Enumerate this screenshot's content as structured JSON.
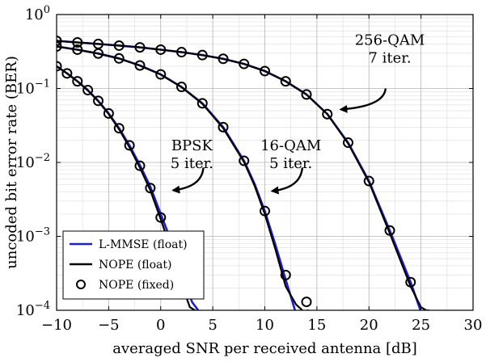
{
  "chart_data": {
    "type": "line",
    "xlabel": "averaged SNR per received antenna [dB]",
    "ylabel": "uncoded bit error rate (BER)",
    "xlim": [
      -10,
      30
    ],
    "ylim": [
      0.0001,
      1
    ],
    "yscale": "log",
    "grid": true,
    "legend_position": "bottom-left",
    "xticks": [
      {
        "value": -10,
        "label": "−10"
      },
      {
        "value": -5,
        "label": "−5"
      },
      {
        "value": 0,
        "label": "0"
      },
      {
        "value": 5,
        "label": "5"
      },
      {
        "value": 10,
        "label": "10"
      },
      {
        "value": 15,
        "label": "15"
      },
      {
        "value": 20,
        "label": "20"
      },
      {
        "value": 25,
        "label": "25"
      },
      {
        "value": 30,
        "label": "30"
      }
    ],
    "yticks": [
      {
        "value": 1,
        "base": "10",
        "exp": "0"
      },
      {
        "value": 0.1,
        "base": "10",
        "exp": "−1"
      },
      {
        "value": 0.01,
        "base": "10",
        "exp": "−2"
      },
      {
        "value": 0.001,
        "base": "10",
        "exp": "−3"
      },
      {
        "value": 0.0001,
        "base": "10",
        "exp": "−4"
      }
    ],
    "colors": {
      "lmmse": "#1f1fd0",
      "nope_float": "#000000",
      "nope_fixed": "#000000"
    },
    "legend": [
      {
        "key": "lmmse",
        "label": "L-MMSE (float)"
      },
      {
        "key": "nope_float",
        "label": "NOPE (float)"
      },
      {
        "key": "nope_fixed",
        "label": "NOPE (fixed)"
      }
    ],
    "groups": [
      {
        "modulation": "BPSK",
        "lmmse": {
          "x": [
            -10,
            -9,
            -8,
            -7,
            -6,
            -5,
            -4,
            -3,
            -2,
            -1,
            0,
            1,
            2,
            3,
            3.6
          ],
          "y": [
            0.2,
            0.16,
            0.125,
            0.095,
            0.068,
            0.046,
            0.029,
            0.017,
            0.0092,
            0.0047,
            0.002,
            0.00087,
            0.00034,
            0.00013,
            0.0001
          ]
        },
        "nope_float": {
          "x": [
            -10,
            -9,
            -8,
            -7,
            -6,
            -5,
            -4,
            -3,
            -2,
            -1,
            0,
            1,
            2,
            2.8,
            3.3
          ],
          "y": [
            0.2,
            0.16,
            0.125,
            0.094,
            0.067,
            0.045,
            0.028,
            0.016,
            0.0085,
            0.0042,
            0.0017,
            0.00066,
            0.00023,
            0.00011,
            0.0001
          ]
        },
        "nope_fixed": {
          "x": [
            -10,
            -9,
            -8,
            -7,
            -6,
            -5,
            -4,
            -3,
            -2,
            -1,
            0,
            1
          ],
          "y": [
            0.2,
            0.16,
            0.125,
            0.095,
            0.068,
            0.046,
            0.029,
            0.017,
            0.009,
            0.0045,
            0.0018,
            0.00072
          ]
        }
      },
      {
        "modulation": "16-QAM",
        "lmmse": {
          "x": [
            -10,
            -8,
            -6,
            -4,
            -2,
            0,
            2,
            4,
            6,
            8,
            9,
            10,
            11,
            12,
            13,
            14.2
          ],
          "y": [
            0.37,
            0.335,
            0.297,
            0.255,
            0.205,
            0.155,
            0.105,
            0.063,
            0.03,
            0.0105,
            0.0052,
            0.0022,
            0.00078,
            0.00026,
            9e-05,
            0.0001
          ]
        },
        "nope_float": {
          "x": [
            -10,
            -8,
            -6,
            -4,
            -2,
            0,
            2,
            4,
            6,
            8,
            9,
            10,
            11,
            12,
            13,
            13.6
          ],
          "y": [
            0.37,
            0.335,
            0.296,
            0.254,
            0.204,
            0.154,
            0.104,
            0.062,
            0.029,
            0.0101,
            0.0049,
            0.002,
            0.00068,
            0.00021,
            0.00012,
            0.0001
          ]
        },
        "nope_fixed": {
          "x": [
            -10,
            -8,
            -6,
            -4,
            -2,
            0,
            2,
            4,
            6,
            8,
            10,
            12,
            14
          ],
          "y": [
            0.37,
            0.335,
            0.297,
            0.255,
            0.205,
            0.155,
            0.105,
            0.063,
            0.03,
            0.0105,
            0.0022,
            0.0003,
            0.00013
          ]
        }
      },
      {
        "modulation": "256-QAM",
        "lmmse": {
          "x": [
            -10,
            -8,
            -6,
            -4,
            -2,
            0,
            2,
            4,
            6,
            8,
            10,
            12,
            14,
            16,
            18,
            20,
            22,
            24,
            25,
            25.8
          ],
          "y": [
            0.44,
            0.42,
            0.4,
            0.38,
            0.36,
            0.335,
            0.31,
            0.283,
            0.252,
            0.215,
            0.172,
            0.125,
            0.083,
            0.045,
            0.0185,
            0.0056,
            0.0012,
            0.00024,
            9.5e-05,
            0.0001
          ]
        },
        "nope_float": {
          "x": [
            -10,
            -8,
            -6,
            -4,
            -2,
            0,
            2,
            4,
            6,
            8,
            10,
            12,
            14,
            16,
            18,
            20,
            22,
            24,
            25,
            25.5
          ],
          "y": [
            0.44,
            0.42,
            0.4,
            0.38,
            0.36,
            0.335,
            0.31,
            0.283,
            0.252,
            0.215,
            0.172,
            0.125,
            0.083,
            0.045,
            0.018,
            0.0054,
            0.0011,
            0.00021,
            0.00011,
            0.0001
          ]
        },
        "nope_fixed": {
          "x": [
            -10,
            -8,
            -6,
            -4,
            -2,
            0,
            2,
            4,
            6,
            8,
            10,
            12,
            14,
            16,
            18,
            20,
            22,
            24
          ],
          "y": [
            0.44,
            0.42,
            0.4,
            0.38,
            0.36,
            0.335,
            0.31,
            0.283,
            0.252,
            0.215,
            0.172,
            0.125,
            0.083,
            0.045,
            0.0185,
            0.0056,
            0.0012,
            0.00024
          ]
        }
      }
    ],
    "annotations": [
      {
        "lines": [
          "BPSK",
          "5 iter."
        ],
        "arrow_to": {
          "x": 1.2,
          "y": 0.0042
        }
      },
      {
        "lines": [
          "16-QAM",
          "5 iter."
        ],
        "arrow_to": {
          "x": 10.7,
          "y": 0.0041
        }
      },
      {
        "lines": [
          "256-QAM",
          "7 iter."
        ],
        "arrow_to": {
          "x": 17.3,
          "y": 0.052
        }
      }
    ]
  }
}
